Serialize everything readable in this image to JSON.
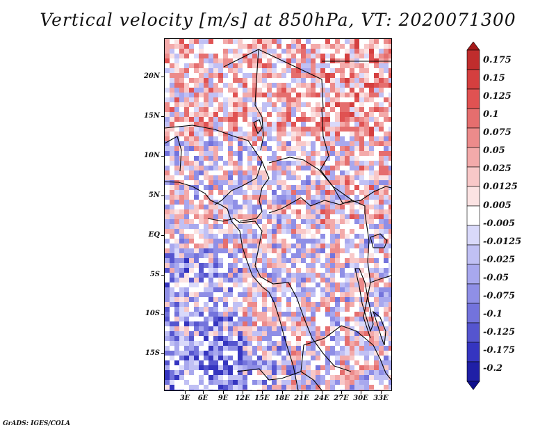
{
  "title": "Vertical velocity [m/s] at 850hPa, VT: 2020071300",
  "footer": "GrADS: IGES/COLA",
  "axes": {
    "lat_labels": [
      "20N",
      "15N",
      "10N",
      "5N",
      "EQ",
      "5S",
      "10S",
      "15S"
    ],
    "lat_values": [
      20,
      15,
      10,
      5,
      0,
      -5,
      -10,
      -15
    ],
    "lon_labels": [
      "3E",
      "6E",
      "9E",
      "12E",
      "15E",
      "18E",
      "21E",
      "24E",
      "27E",
      "30E",
      "33E"
    ],
    "lon_values": [
      3,
      6,
      9,
      12,
      15,
      18,
      21,
      24,
      27,
      30,
      33
    ],
    "lat_range": [
      -19.8,
      24.8
    ],
    "lon_range": [
      0.3,
      34.6
    ]
  },
  "colorbar": {
    "labels": [
      "0.175",
      "0.15",
      "0.125",
      "0.1",
      "0.075",
      "0.05",
      "0.025",
      "0.0125",
      "0.005",
      "-0.005",
      "-0.0125",
      "-0.025",
      "-0.05",
      "-0.075",
      "-0.1",
      "-0.125",
      "-0.175",
      "-0.2"
    ],
    "colors": [
      "#a51a1a",
      "#c02d2d",
      "#d43f3f",
      "#e05252",
      "#e56e6e",
      "#ec8b8b",
      "#f3aaaa",
      "#f8c8c8",
      "#fbe3e3",
      "#ffffff",
      "#d9d9fa",
      "#c0c0f4",
      "#a8a8ee",
      "#8f8fe6",
      "#7373dc",
      "#5555cf",
      "#3535c0",
      "#1f1fa6",
      "#0f0f8c"
    ]
  }
}
